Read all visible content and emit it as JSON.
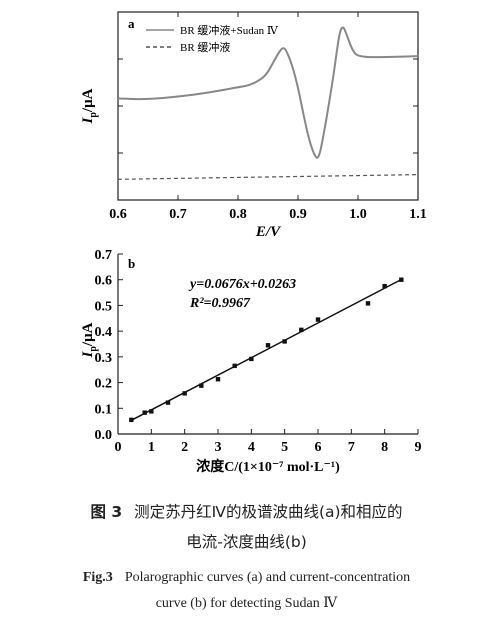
{
  "chart_data": [
    {
      "panel_label": "a",
      "type": "line",
      "xlabel": "E/V",
      "ylabel": "I_p/μA",
      "xlim": [
        0.6,
        1.1
      ],
      "xticks": [
        0.6,
        0.7,
        0.8,
        0.9,
        1.0,
        1.1
      ],
      "xtick_labels": [
        "0.6",
        "0.7",
        "0.8",
        "0.9",
        "1.0",
        "1.1"
      ],
      "ylim": [
        0,
        1
      ],
      "y_tick_labels_shown": false,
      "legend_position": "top",
      "series": [
        {
          "name": "BR 缓冲液+Sudan Ⅳ",
          "style": "solid",
          "color": "#888888",
          "x": [
            0.6,
            0.65,
            0.7,
            0.75,
            0.8,
            0.82,
            0.84,
            0.85,
            0.86,
            0.87,
            0.875,
            0.88,
            0.89,
            0.9,
            0.91,
            0.92,
            0.93,
            0.935,
            0.94,
            0.95,
            0.96,
            0.965,
            0.97,
            0.975,
            0.98,
            0.99,
            1.0,
            1.05,
            1.1
          ],
          "values": [
            0.54,
            0.535,
            0.55,
            0.57,
            0.6,
            0.61,
            0.645,
            0.68,
            0.74,
            0.795,
            0.81,
            0.8,
            0.72,
            0.6,
            0.44,
            0.3,
            0.22,
            0.23,
            0.3,
            0.48,
            0.68,
            0.8,
            0.9,
            0.925,
            0.89,
            0.8,
            0.76,
            0.76,
            0.765
          ]
        },
        {
          "name": "BR 缓冲液",
          "style": "dashed",
          "color": "#555555",
          "x": [
            0.6,
            1.1
          ],
          "values": [
            0.11,
            0.135
          ]
        }
      ]
    },
    {
      "panel_label": "b",
      "type": "scatter",
      "xlabel": "浓度C/(1×10⁻⁷ mol·L⁻¹)",
      "ylabel": "I_p/μA",
      "xlim": [
        0,
        9
      ],
      "ylim": [
        0.0,
        0.7
      ],
      "xticks": [
        0,
        1,
        2,
        3,
        4,
        5,
        6,
        7,
        8,
        9
      ],
      "yticks": [
        0.0,
        0.1,
        0.2,
        0.3,
        0.4,
        0.5,
        0.6,
        0.7
      ],
      "xtick_labels": [
        "0",
        "1",
        "2",
        "3",
        "4",
        "5",
        "6",
        "7",
        "8",
        "9"
      ],
      "ytick_labels": [
        "0.0",
        "0.1",
        "0.2",
        "0.3",
        "0.4",
        "0.5",
        "0.6",
        "0.7"
      ],
      "equation": "y=0.0676x+0.0263",
      "r_squared": "R²=0.9967",
      "fit": {
        "slope": 0.0676,
        "intercept": 0.0263,
        "x_range": [
          0.4,
          8.5
        ]
      },
      "points": {
        "x": [
          0.4,
          0.8,
          1.0,
          1.5,
          2.0,
          2.5,
          3.0,
          3.5,
          4.0,
          4.5,
          5.0,
          5.5,
          6.0,
          7.5,
          8.0,
          8.5
        ],
        "y": [
          0.055,
          0.083,
          0.088,
          0.122,
          0.158,
          0.188,
          0.213,
          0.265,
          0.292,
          0.345,
          0.36,
          0.405,
          0.445,
          0.508,
          0.575,
          0.6
        ]
      }
    }
  ],
  "caption": {
    "cn_fig": "图 3",
    "cn_line1": "测定苏丹红Ⅳ的极谱波曲线(a)和相应的",
    "cn_line2": "电流-浓度曲线(b)",
    "en_fig": "Fig.3",
    "en_line1": "Polarographic curves (a) and current-concentration",
    "en_line2": "curve (b) for detecting Sudan Ⅳ"
  }
}
